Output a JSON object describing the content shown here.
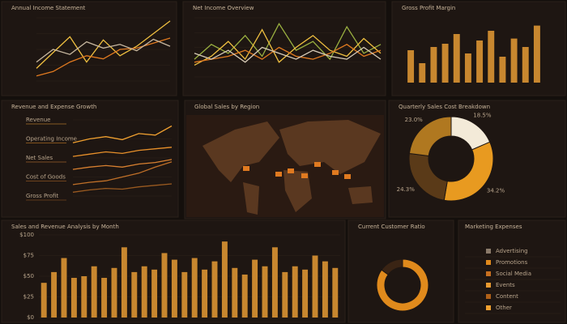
{
  "chart_data": [
    {
      "type": "line",
      "title": "Annual Income Statement",
      "categories": [
        null,
        null,
        null,
        null,
        null,
        null,
        null,
        null,
        null
      ],
      "ylim": [
        0,
        100
      ],
      "series": [
        {
          "color": "#f0c040",
          "values": [
            20,
            45,
            70,
            30,
            65,
            40,
            55,
            75,
            95
          ]
        },
        {
          "color": "#e07a20",
          "values": [
            8,
            15,
            30,
            40,
            35,
            50,
            52,
            60,
            68
          ]
        },
        {
          "color": "#c8b8a0",
          "values": [
            30,
            50,
            42,
            62,
            52,
            58,
            48,
            66,
            55
          ]
        }
      ]
    },
    {
      "type": "line",
      "title": "Net Income Overview",
      "categories": [
        null,
        null,
        null,
        null,
        null,
        null,
        null,
        null,
        null,
        null,
        null,
        null
      ],
      "ylim": [
        0,
        100
      ],
      "series": [
        {
          "color": "#9ab040",
          "values": [
            30,
            55,
            40,
            70,
            35,
            90,
            45,
            60,
            30,
            85,
            40,
            55
          ]
        },
        {
          "color": "#f0c040",
          "values": [
            20,
            35,
            60,
            30,
            80,
            25,
            50,
            70,
            45,
            35,
            65,
            40
          ]
        },
        {
          "color": "#e07a20",
          "values": [
            25,
            30,
            35,
            45,
            30,
            50,
            35,
            30,
            40,
            55,
            35,
            45
          ]
        },
        {
          "color": "#d8ccb8",
          "values": [
            40,
            30,
            45,
            25,
            50,
            40,
            30,
            45,
            35,
            30,
            50,
            30
          ]
        }
      ]
    },
    {
      "type": "bar",
      "title": "Gross Profit Margin",
      "categories": [
        null,
        null,
        null,
        null,
        null,
        null,
        null,
        null,
        null,
        null,
        null,
        null
      ],
      "ylim": [
        0,
        100
      ],
      "color": "#c8872f",
      "values": [
        50,
        30,
        55,
        60,
        75,
        45,
        65,
        80,
        40,
        68,
        55,
        88
      ]
    },
    {
      "type": "line",
      "title": "Revenue and Expense Growth",
      "categories": [
        null,
        null,
        null,
        null,
        null,
        null,
        null
      ],
      "ylim": [
        0,
        100
      ],
      "series": [
        {
          "name": "Revenue",
          "color": "#f0a030",
          "values": [
            70,
            75,
            78,
            74,
            82,
            80,
            92
          ]
        },
        {
          "name": "Operating Income",
          "color": "#e8902a",
          "values": [
            52,
            55,
            58,
            56,
            60,
            62,
            64
          ]
        },
        {
          "name": "Net Sales",
          "color": "#d88030",
          "values": [
            35,
            38,
            40,
            38,
            42,
            44,
            48
          ]
        },
        {
          "name": "Cost of Goods",
          "color": "#c07028",
          "values": [
            15,
            18,
            20,
            25,
            30,
            38,
            45
          ]
        },
        {
          "name": "Gross Profit",
          "color": "#9a5a20",
          "values": [
            5,
            8,
            10,
            9,
            12,
            14,
            16
          ]
        }
      ]
    },
    {
      "type": "map",
      "title": "Global Sales by Region"
    },
    {
      "type": "pie",
      "title": "Quarterly Sales Cost Breakdown",
      "values": [
        18.5,
        34.2,
        24.3,
        23.0
      ],
      "value_labels": [
        "18.5%",
        "34.2%",
        "24.3%",
        "23.0%"
      ],
      "colors": [
        "#f3ead8",
        "#e89a20",
        "#5a3a18",
        "#b07820"
      ]
    },
    {
      "type": "bar",
      "title": "Sales and Revenue Analysis by Month",
      "color": "#c8872f",
      "categories": [
        null,
        null,
        null,
        null,
        null,
        null,
        null,
        null,
        null,
        null,
        null,
        null,
        null,
        null,
        null,
        null,
        null,
        null,
        null,
        null,
        null,
        null,
        null,
        null,
        null,
        null,
        null,
        null,
        null,
        null
      ],
      "values": [
        42,
        55,
        72,
        48,
        50,
        62,
        48,
        60,
        85,
        55,
        62,
        58,
        78,
        70,
        55,
        72,
        58,
        68,
        92,
        60,
        52,
        70,
        62,
        85,
        55,
        62,
        58,
        75,
        68,
        60
      ],
      "ylim": [
        0,
        100
      ],
      "yticks": [
        {
          "value": 0,
          "label": "$0"
        },
        {
          "value": 25,
          "label": "$25"
        },
        {
          "value": 50,
          "label": "$50"
        },
        {
          "value": 75,
          "label": "$75"
        },
        {
          "value": 100,
          "label": "$100"
        }
      ]
    },
    {
      "type": "pie",
      "title": "Current Customer Ratio",
      "values": [
        85,
        15
      ],
      "colors": [
        "#e08a1c",
        "#3a2414"
      ]
    }
  ],
  "expense_list": {
    "title": "Marketing Expenses",
    "items": [
      "Advertising",
      "Promotions",
      "Social Media",
      "Events",
      "Content",
      "Other"
    ],
    "colors": [
      "#8a7a6a",
      "#e08a1c",
      "#c87020",
      "#e89a30",
      "#b06018",
      "#f0a030"
    ]
  }
}
